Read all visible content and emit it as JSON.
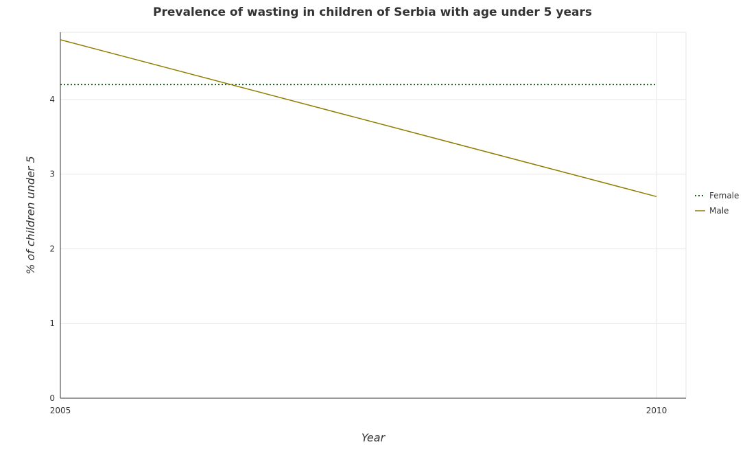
{
  "chart_data": {
    "type": "line",
    "title": "Prevalence of wasting in children of Serbia with age under 5 years",
    "xlabel": "Year",
    "ylabel": "% of children under 5",
    "x": [
      "2005",
      "2010"
    ],
    "ylim": [
      0,
      4.9
    ],
    "yticks": [
      "0",
      "1",
      "2",
      "3",
      "4"
    ],
    "grid": true,
    "legend_position": "right",
    "series": [
      {
        "name": "Female",
        "values": [
          4.2,
          4.2
        ],
        "color": "#1a5b1a",
        "style": "dotted"
      },
      {
        "name": "Male",
        "values": [
          4.8,
          2.7
        ],
        "color": "#8f7c00",
        "style": "solid"
      }
    ]
  }
}
